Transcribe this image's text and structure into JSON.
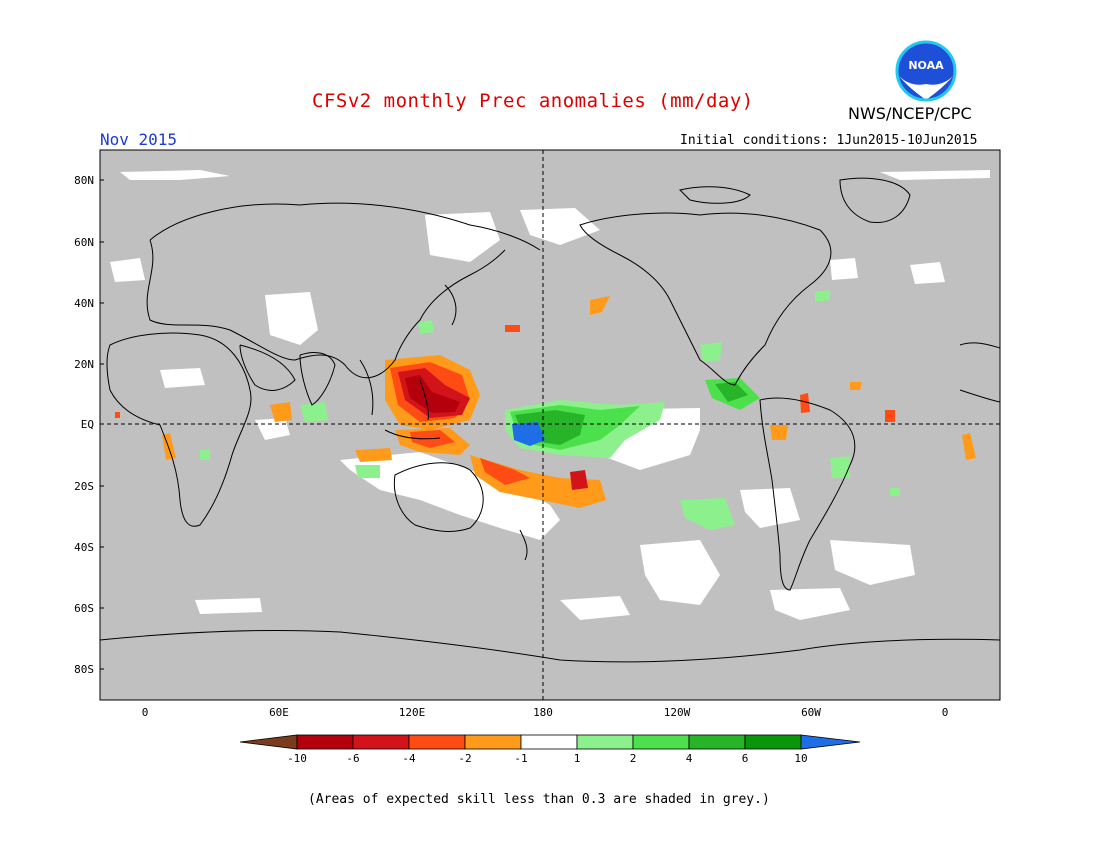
{
  "header": {
    "title": "CFSv2 monthly Prec anomalies (mm/day)",
    "agency": "NWS/NCEP/CPC",
    "month": "Nov 2015",
    "initial_conditions": "Initial conditions: 1Jun2015-10Jun2015"
  },
  "logo": {
    "text": "NOAA",
    "icon": "noaa-logo-icon"
  },
  "map": {
    "projection": "equirectangular",
    "lat_labels": [
      "80N",
      "60N",
      "40N",
      "20N",
      "EQ",
      "20S",
      "40S",
      "60S",
      "80S"
    ],
    "lon_labels": [
      "0",
      "60E",
      "120E",
      "180",
      "120W",
      "60W",
      "0"
    ],
    "background_color": "#c0c0c0",
    "reference_lines": [
      "equator",
      "dateline"
    ]
  },
  "colorbar": {
    "labels": [
      "-10",
      "-6",
      "-4",
      "-2",
      "-1",
      "1",
      "2",
      "4",
      "6",
      "10"
    ],
    "colors": [
      "#7a3b1e",
      "#b4000c",
      "#d2141a",
      "#ff4c14",
      "#ff9a1a",
      "#ffffff",
      "#8cf08c",
      "#4ce04c",
      "#28b428",
      "#0a960a",
      "#1e6ee6"
    ]
  },
  "footnote": "(Areas of expected skill less than 0.3 are shaded in grey.)"
}
